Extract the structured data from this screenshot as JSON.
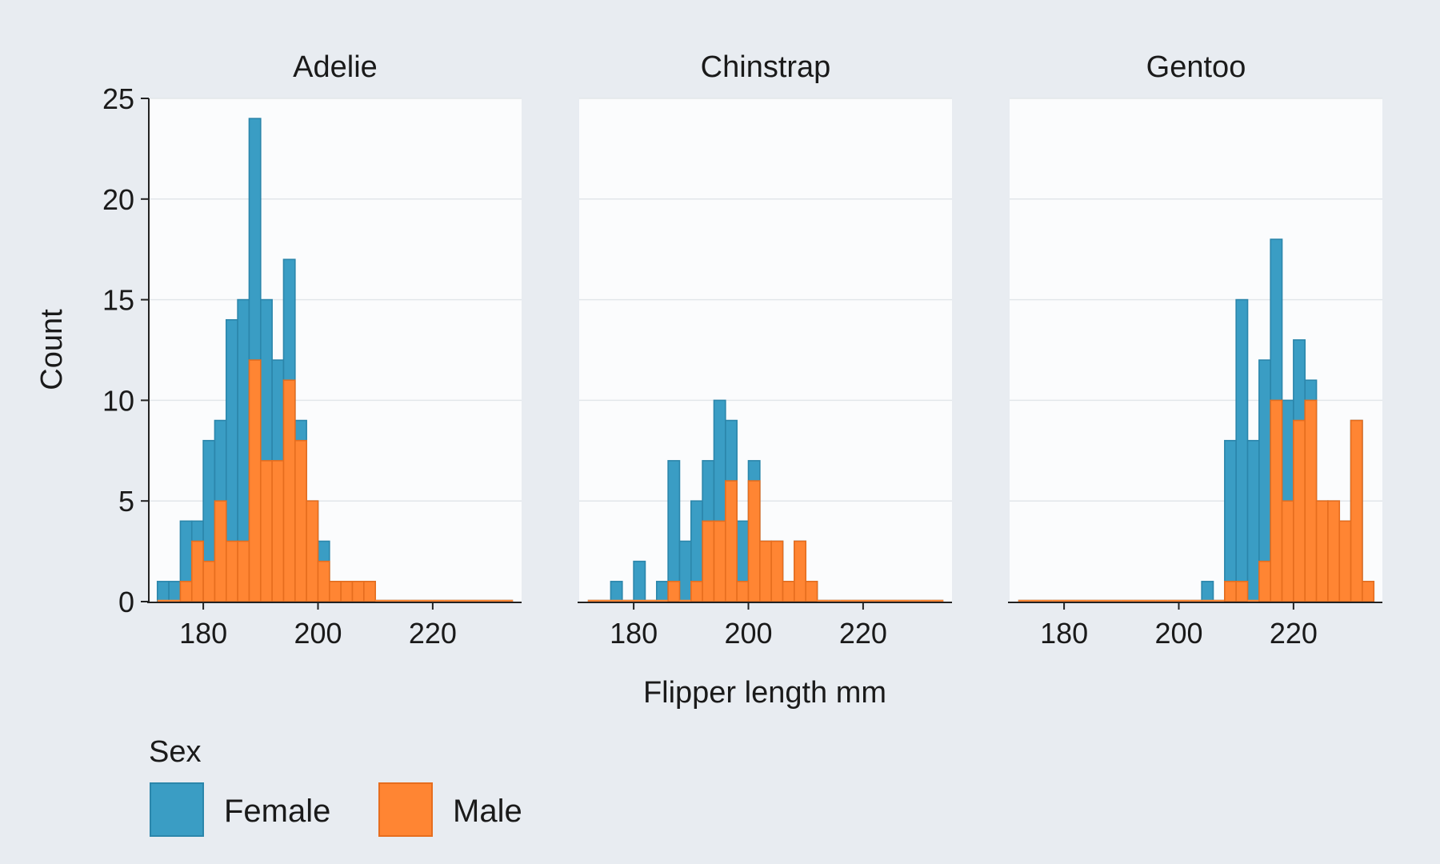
{
  "chart_data": {
    "type": "bar",
    "subtype": "faceted-stacked-histogram",
    "xlabel": "Flipper length mm",
    "ylabel": "Count",
    "ylim": [
      0,
      25
    ],
    "xlim": [
      170.5,
      235.5
    ],
    "yticks": [
      0,
      5,
      10,
      15,
      20,
      25
    ],
    "xticks": [
      180,
      200,
      220
    ],
    "bin_start": 172,
    "bin_width": 2,
    "grid": "horizontal",
    "stacking": "layered",
    "legend": {
      "title": "Sex",
      "position": "bottom-left",
      "entries": [
        {
          "name": "Female",
          "color": "#3a9dc4"
        },
        {
          "name": "Male",
          "color": "#ff8533"
        }
      ]
    },
    "facets": [
      {
        "title": "Adelie",
        "series": [
          {
            "name": "Female",
            "color": "#3a9dc4",
            "values": [
              1,
              1,
              4,
              4,
              8,
              9,
              14,
              15,
              24,
              15,
              12,
              17,
              9,
              5,
              3,
              1,
              1,
              1,
              1,
              0,
              0,
              0,
              0,
              0,
              0,
              0,
              0,
              0,
              0,
              0,
              0
            ]
          },
          {
            "name": "Male",
            "color": "#ff8533",
            "values": [
              0,
              0,
              1,
              3,
              2,
              5,
              3,
              3,
              12,
              7,
              7,
              11,
              8,
              5,
              2,
              1,
              1,
              1,
              1,
              0,
              0,
              0,
              0,
              0,
              0,
              0,
              0,
              0,
              0,
              0,
              0
            ]
          }
        ]
      },
      {
        "title": "Chinstrap",
        "series": [
          {
            "name": "Female",
            "color": "#3a9dc4",
            "values": [
              0,
              0,
              1,
              0,
              2,
              0,
              1,
              7,
              3,
              5,
              7,
              10,
              9,
              4,
              7,
              3,
              3,
              1,
              3,
              1,
              0,
              0,
              0,
              0,
              0,
              0,
              0,
              0,
              0,
              0,
              0
            ]
          },
          {
            "name": "Male",
            "color": "#ff8533",
            "values": [
              0,
              0,
              0,
              0,
              0,
              0,
              0,
              1,
              0,
              1,
              4,
              4,
              6,
              1,
              6,
              3,
              3,
              1,
              3,
              1,
              0,
              0,
              0,
              0,
              0,
              0,
              0,
              0,
              0,
              0,
              0
            ]
          }
        ]
      },
      {
        "title": "Gentoo",
        "series": [
          {
            "name": "Female",
            "color": "#3a9dc4",
            "values": [
              0,
              0,
              0,
              0,
              0,
              0,
              0,
              0,
              0,
              0,
              0,
              0,
              0,
              0,
              0,
              0,
              1,
              0,
              8,
              15,
              8,
              12,
              18,
              10,
              13,
              11,
              5,
              5,
              4,
              9,
              1
            ]
          },
          {
            "name": "Male",
            "color": "#ff8533",
            "values": [
              0,
              0,
              0,
              0,
              0,
              0,
              0,
              0,
              0,
              0,
              0,
              0,
              0,
              0,
              0,
              0,
              0,
              0,
              1,
              1,
              0,
              2,
              10,
              5,
              9,
              10,
              5,
              5,
              4,
              9,
              1
            ]
          }
        ]
      }
    ]
  }
}
